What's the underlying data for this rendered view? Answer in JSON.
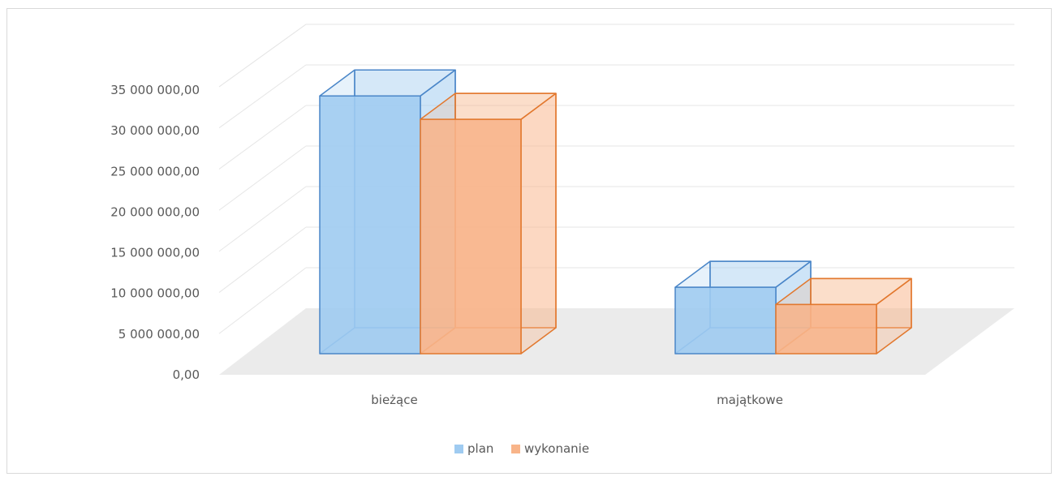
{
  "chart_data": {
    "type": "bar",
    "categories": [
      "bieżące",
      "majątkowe"
    ],
    "series": [
      {
        "name": "plan",
        "values": [
          33000000,
          8500000
        ],
        "color": "#9FCBF1",
        "stroke": "#4A86C8"
      },
      {
        "name": "wykonanie",
        "values": [
          30000000,
          6300000
        ],
        "color": "#F8B489",
        "stroke": "#E2782E"
      }
    ],
    "ylim": [
      0,
      35000000
    ],
    "yticks": [
      0,
      5000000,
      10000000,
      15000000,
      20000000,
      25000000,
      30000000,
      35000000
    ],
    "ytick_labels": [
      "0,00",
      "5 000 000,00",
      "10 000 000,00",
      "15 000 000,00",
      "20 000 000,00",
      "25 000 000,00",
      "30 000 000,00",
      "35 000 000,00"
    ],
    "grid": true,
    "legend_position": "bottom",
    "style": "3d-column"
  }
}
